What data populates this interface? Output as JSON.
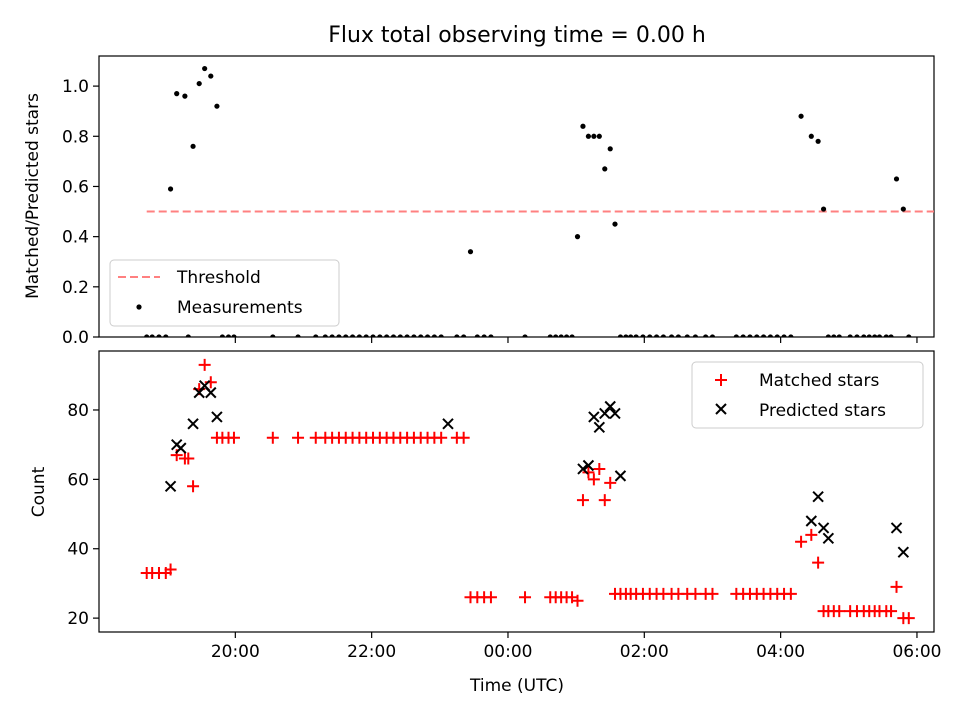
{
  "title": "Flux total observing time = 0.00 h",
  "chart_data": [
    {
      "type": "scatter",
      "ylabel": "Matched/Predicted stars",
      "ylim": [
        0,
        1.12
      ],
      "yticks": [
        "0.0",
        "0.2",
        "0.4",
        "0.6",
        "0.8",
        "1.0"
      ],
      "ytick_values": [
        0,
        0.2,
        0.4,
        0.6,
        0.8,
        1.0
      ],
      "legend_position": "lower-left",
      "series": [
        {
          "name": "Threshold",
          "kind": "dashed-line",
          "color": "#ff8080",
          "x": [
            -5.3,
            6.75
          ],
          "y": [
            0.5,
            0.5
          ]
        },
        {
          "name": "Measurements",
          "kind": "dot",
          "color": "#000000",
          "x": [
            -5.3,
            -5.22,
            -5.12,
            -5.02,
            -4.95,
            -4.86,
            -4.74,
            -4.69,
            -4.62,
            -4.53,
            -4.45,
            -4.36,
            -4.27,
            -4.19,
            -4.1,
            -4.02,
            -3.45,
            -3.08,
            -2.82,
            -2.68,
            -2.58,
            -2.48,
            -2.38,
            -2.28,
            -2.18,
            -2.08,
            -1.98,
            -1.88,
            -1.78,
            -1.68,
            -1.58,
            -1.48,
            -1.38,
            -1.28,
            -1.18,
            -1.08,
            -0.98,
            -0.75,
            -0.65,
            -0.55,
            -0.45,
            -0.35,
            -0.25,
            0.25,
            0.62,
            0.7,
            0.78,
            0.86,
            0.94,
            1.02,
            1.1,
            1.18,
            1.26,
            1.34,
            1.42,
            1.5,
            1.57,
            1.65,
            1.73,
            1.8,
            1.88,
            1.98,
            2.08,
            2.18,
            2.28,
            2.4,
            2.5,
            2.63,
            2.75,
            2.9,
            3.0,
            3.35,
            3.45,
            3.55,
            3.65,
            3.75,
            3.85,
            3.95,
            4.05,
            4.15,
            4.3,
            4.45,
            4.55,
            4.63,
            4.7,
            4.78,
            4.86,
            5.02,
            5.12,
            5.22,
            5.3,
            5.38,
            5.45,
            5.55,
            5.62,
            5.7,
            5.8,
            5.88
          ],
          "y": [
            0,
            0,
            0,
            0,
            0.59,
            0.97,
            0.96,
            0,
            0.76,
            1.01,
            1.07,
            1.04,
            0.92,
            0,
            0,
            0,
            0,
            0,
            0,
            0,
            0,
            0,
            0,
            0,
            0,
            0,
            0,
            0,
            0,
            0,
            0,
            0,
            0,
            0,
            0,
            0,
            0,
            0,
            0,
            0.34,
            0,
            0,
            0,
            0,
            0,
            0,
            0,
            0,
            0,
            0.4,
            0.84,
            0.8,
            0.8,
            0.8,
            0.67,
            0.75,
            0.45,
            0,
            0,
            0,
            0,
            0,
            0,
            0,
            0,
            0,
            0,
            0,
            0,
            0,
            0,
            0,
            0,
            0,
            0,
            0,
            0,
            0,
            0,
            0,
            0.88,
            0.8,
            0.78,
            0.51,
            0,
            0,
            0,
            0,
            0,
            0,
            0,
            0,
            0,
            0,
            0,
            0.63,
            0.51,
            0
          ]
        }
      ]
    },
    {
      "type": "scatter",
      "xlabel": "Time (UTC)",
      "ylabel": "Count",
      "xlim": [
        -6,
        6.25
      ],
      "ylim": [
        16,
        97
      ],
      "xtick_values": [
        -4,
        -2,
        0,
        2,
        4,
        6
      ],
      "xticks": [
        "20:00",
        "22:00",
        "00:00",
        "02:00",
        "04:00",
        "06:00"
      ],
      "ytick_values": [
        20,
        40,
        60,
        80
      ],
      "yticks": [
        "20",
        "40",
        "60",
        "80"
      ],
      "legend_position": "top-right",
      "series": [
        {
          "name": "Matched stars",
          "kind": "plus",
          "color": "#ff0000",
          "x": [
            -5.3,
            -5.22,
            -5.12,
            -5.02,
            -4.95,
            -4.86,
            -4.74,
            -4.69,
            -4.62,
            -4.53,
            -4.45,
            -4.36,
            -4.27,
            -4.19,
            -4.1,
            -4.02,
            -3.45,
            -3.08,
            -2.82,
            -2.68,
            -2.58,
            -2.48,
            -2.38,
            -2.28,
            -2.18,
            -2.08,
            -1.98,
            -1.88,
            -1.78,
            -1.68,
            -1.58,
            -1.48,
            -1.38,
            -1.28,
            -1.18,
            -1.08,
            -0.98,
            -0.75,
            -0.65,
            -0.55,
            -0.45,
            -0.35,
            -0.25,
            0.25,
            0.62,
            0.7,
            0.78,
            0.86,
            0.94,
            1.02,
            1.1,
            1.18,
            1.26,
            1.34,
            1.42,
            1.5,
            1.57,
            1.65,
            1.73,
            1.8,
            1.88,
            1.98,
            2.08,
            2.18,
            2.28,
            2.4,
            2.5,
            2.63,
            2.75,
            2.9,
            3.0,
            3.35,
            3.45,
            3.55,
            3.65,
            3.75,
            3.85,
            3.95,
            4.05,
            4.15,
            4.3,
            4.45,
            4.55,
            4.63,
            4.7,
            4.78,
            4.86,
            5.02,
            5.12,
            5.22,
            5.3,
            5.38,
            5.45,
            5.55,
            5.62,
            5.7,
            5.8,
            5.88
          ],
          "y": [
            33,
            33,
            33,
            33,
            34,
            67,
            66,
            66,
            58,
            86,
            93,
            88,
            72,
            72,
            72,
            72,
            72,
            72,
            72,
            72,
            72,
            72,
            72,
            72,
            72,
            72,
            72,
            72,
            72,
            72,
            72,
            72,
            72,
            72,
            72,
            72,
            72,
            72,
            72,
            26,
            26,
            26,
            26,
            26,
            26,
            26,
            26,
            26,
            26,
            25,
            54,
            62,
            60,
            63,
            54,
            59,
            27,
            27,
            27,
            27,
            27,
            27,
            27,
            27,
            27,
            27,
            27,
            27,
            27,
            27,
            27,
            27,
            27,
            27,
            27,
            27,
            27,
            27,
            27,
            27,
            42,
            44,
            36,
            22,
            22,
            22,
            22,
            22,
            22,
            22,
            22,
            22,
            22,
            22,
            22,
            29,
            20,
            20
          ]
        },
        {
          "name": "Predicted stars",
          "kind": "x",
          "color": "#000000",
          "x": [
            -4.95,
            -4.86,
            -4.8,
            -4.62,
            -4.53,
            -4.45,
            -4.36,
            -4.27,
            -0.88,
            1.1,
            1.18,
            1.26,
            1.34,
            1.42,
            1.5,
            1.57,
            1.65,
            4.45,
            4.55,
            4.63,
            4.7,
            5.7,
            5.8
          ],
          "y": [
            58,
            70,
            69,
            76,
            85,
            87,
            85,
            78,
            76,
            63,
            64,
            78,
            75,
            79,
            81,
            79,
            61,
            48,
            55,
            46,
            43,
            46,
            39
          ]
        }
      ]
    }
  ]
}
